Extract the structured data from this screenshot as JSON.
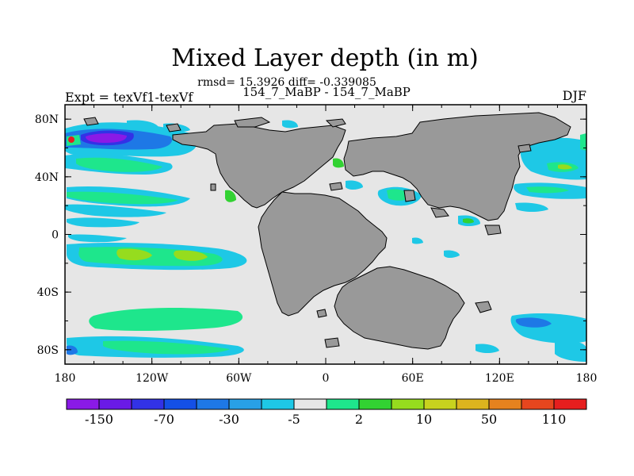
{
  "title": "Mixed Layer depth (in m)",
  "stats": "rmsd= 15.3926 diff= -0.339085",
  "subtitle": "154_7_MaBP - 154_7_MaBP",
  "left_label": "Expt = texVf1-texVf",
  "right_label": "DJF",
  "x_ticks": [
    "180",
    "120W",
    "60W",
    "0",
    "60E",
    "120E",
    "180"
  ],
  "y_ticks": [
    "80N",
    "40N",
    "0",
    "40S",
    "80S"
  ],
  "colorbar": {
    "colors": [
      "#8a1ae6",
      "#6a1ae6",
      "#3232e6",
      "#1450e6",
      "#1e78e6",
      "#28a0e6",
      "#1ec8e6",
      "#e6e6e6",
      "#1ee68c",
      "#32d232",
      "#96dc1e",
      "#c8d21e",
      "#dcb41e",
      "#e6821e",
      "#e6461e",
      "#e61e1e"
    ],
    "labels": [
      "-150",
      "-70",
      "-30",
      "-5",
      "2",
      "10",
      "50",
      "110"
    ]
  },
  "map": {
    "ocean_color": "#e6e6e6",
    "land_color": "#999999"
  }
}
